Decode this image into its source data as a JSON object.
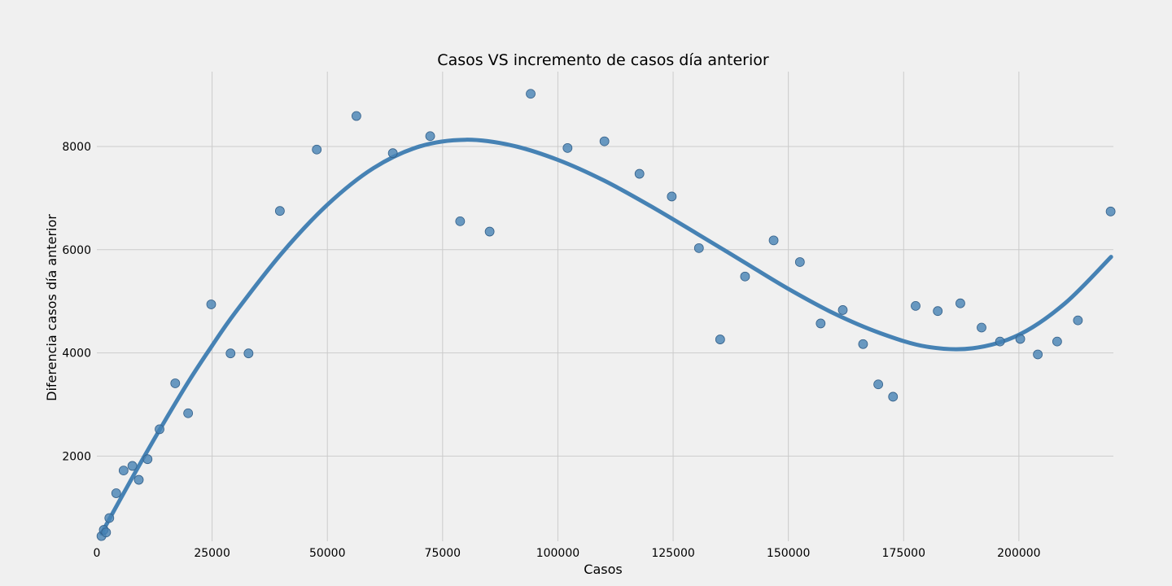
{
  "chart_data": {
    "type": "scatter",
    "title": "Casos VS incremento de casos día anterior",
    "xlabel": "Casos",
    "ylabel": "Diferencia casos día anterior",
    "xlim": [
      0,
      220500
    ],
    "ylim": [
      350,
      9450
    ],
    "xticks": [
      0,
      25000,
      50000,
      75000,
      100000,
      125000,
      150000,
      175000,
      200000
    ],
    "yticks": [
      2000,
      4000,
      6000,
      8000
    ],
    "grid": true,
    "colors": {
      "points": "#4682b4",
      "fit_line": "#4682b4",
      "background": "#f0f0f0",
      "grid": "#cbcbcb"
    },
    "series": [
      {
        "kind": "points",
        "x": [
          1000,
          1500,
          2000,
          2700,
          4200,
          5800,
          7700,
          9100,
          11000,
          13600,
          17000,
          19800,
          24800,
          29000,
          32900,
          39700,
          47700,
          56300,
          64200,
          72300,
          78800,
          85200,
          94100,
          102100,
          110100,
          117700,
          124700,
          130600,
          135200,
          140600,
          146800,
          152500,
          157000,
          161800,
          166200,
          169500,
          172700,
          177600,
          182400,
          187300,
          191900,
          195900,
          200300,
          204100,
          208300,
          212800,
          219900
        ],
        "y": [
          450,
          570,
          520,
          800,
          1280,
          1720,
          1810,
          1540,
          1940,
          2520,
          3410,
          2830,
          4940,
          3990,
          3990,
          6750,
          7940,
          8590,
          7870,
          8200,
          6550,
          6350,
          9020,
          7970,
          8100,
          7470,
          7030,
          6030,
          4260,
          5480,
          6180,
          5760,
          4570,
          4830,
          4170,
          3390,
          3150,
          4910,
          4810,
          4960,
          4490,
          4220,
          4270,
          3970,
          4220,
          4630,
          6740
        ]
      },
      {
        "kind": "fit_line",
        "x": [
          1000,
          5000,
          10000,
          15000,
          20000,
          25000,
          30000,
          40000,
          50000,
          60000,
          70000,
          80000,
          90000,
          100000,
          110000,
          120000,
          130000,
          140000,
          150000,
          160000,
          170000,
          180000,
          190000,
          200000,
          210000,
          220000
        ],
        "y": [
          500,
          1150,
          1950,
          2720,
          3460,
          4140,
          4780,
          5920,
          6870,
          7580,
          8000,
          8130,
          8020,
          7740,
          7340,
          6850,
          6320,
          5780,
          5240,
          4760,
          4380,
          4120,
          4090,
          4350,
          4960,
          5860
        ]
      }
    ]
  }
}
